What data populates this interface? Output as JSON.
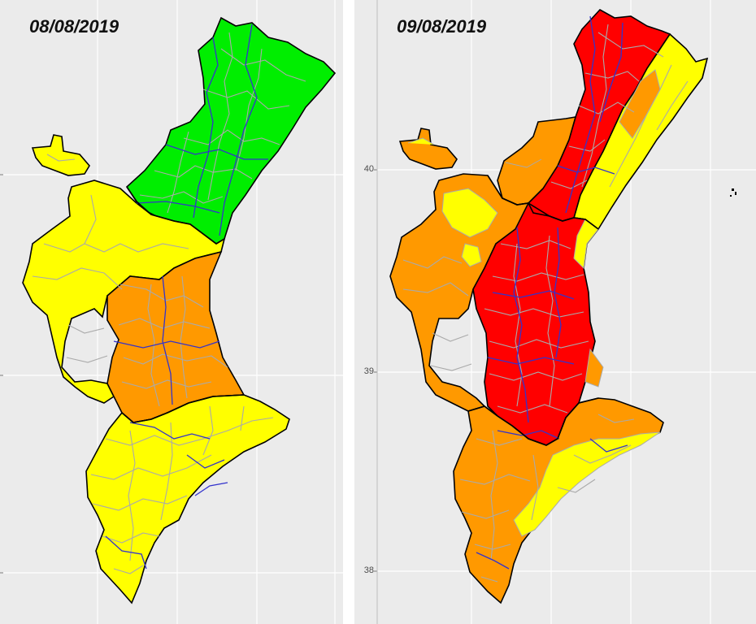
{
  "panels": [
    {
      "date": "08/08/2019"
    },
    {
      "date": "09/08/2019"
    }
  ],
  "latitude_ticks": [
    "40",
    "39",
    "38"
  ],
  "colors": {
    "background": "#ebebeb",
    "gridline": "#ffffff",
    "green": "#00ee00",
    "yellow": "#ffff00",
    "orange": "#ff9900",
    "red": "#ff0000",
    "municipal_border": "#aaaaaa",
    "district_border": "#3333cc",
    "region_border": "#000000"
  }
}
